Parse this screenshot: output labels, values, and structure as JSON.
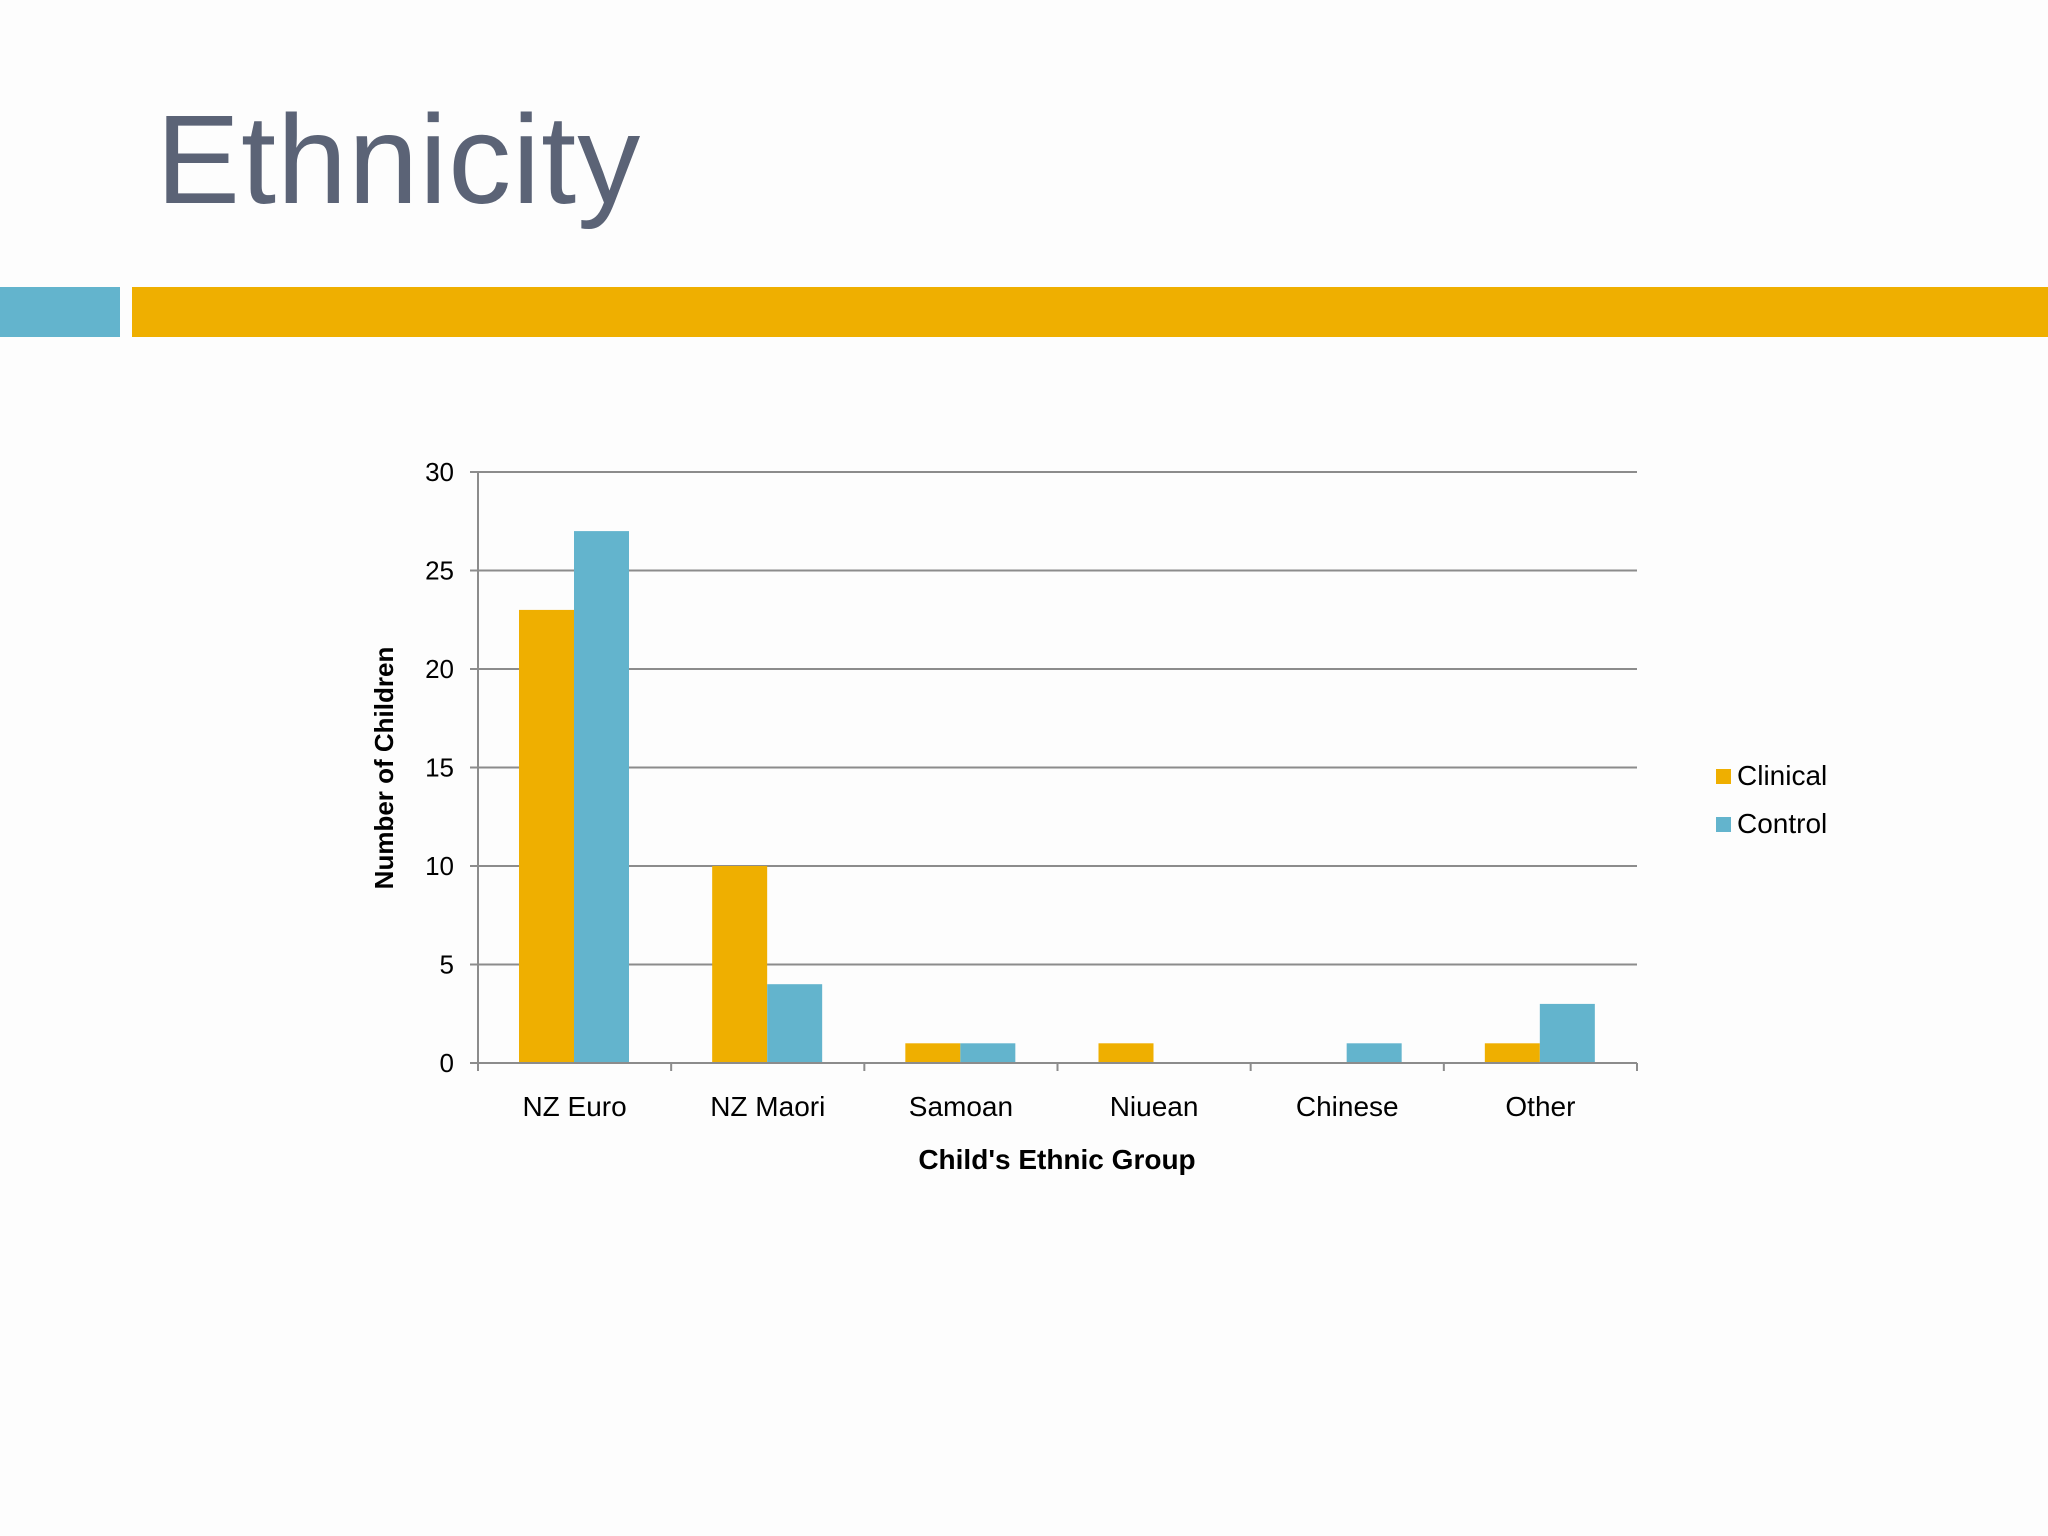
{
  "slide": {
    "title": "Ethnicity"
  },
  "colors": {
    "title": "#5b6376",
    "accent_teal": "#63b4cd",
    "accent_gold": "#efaf00",
    "gridline": "#8c8c8c",
    "axis": "#8c8c8c"
  },
  "chart_data": {
    "type": "bar",
    "title": "",
    "xlabel": "Child's Ethnic Group",
    "ylabel": "Number of Children",
    "categories": [
      "NZ Euro",
      "NZ Maori",
      "Samoan",
      "Niuean",
      "Chinese",
      "Other"
    ],
    "series": [
      {
        "name": "Clinical",
        "color": "#efaf00",
        "values": [
          23,
          10,
          1,
          1,
          0,
          1
        ]
      },
      {
        "name": "Control",
        "color": "#63b4cd",
        "values": [
          27,
          4,
          1,
          0,
          1,
          3
        ]
      }
    ],
    "ylim": [
      0,
      30
    ],
    "yticks": [
      0,
      5,
      10,
      15,
      20,
      25,
      30
    ],
    "grid": true,
    "legend": "right"
  }
}
